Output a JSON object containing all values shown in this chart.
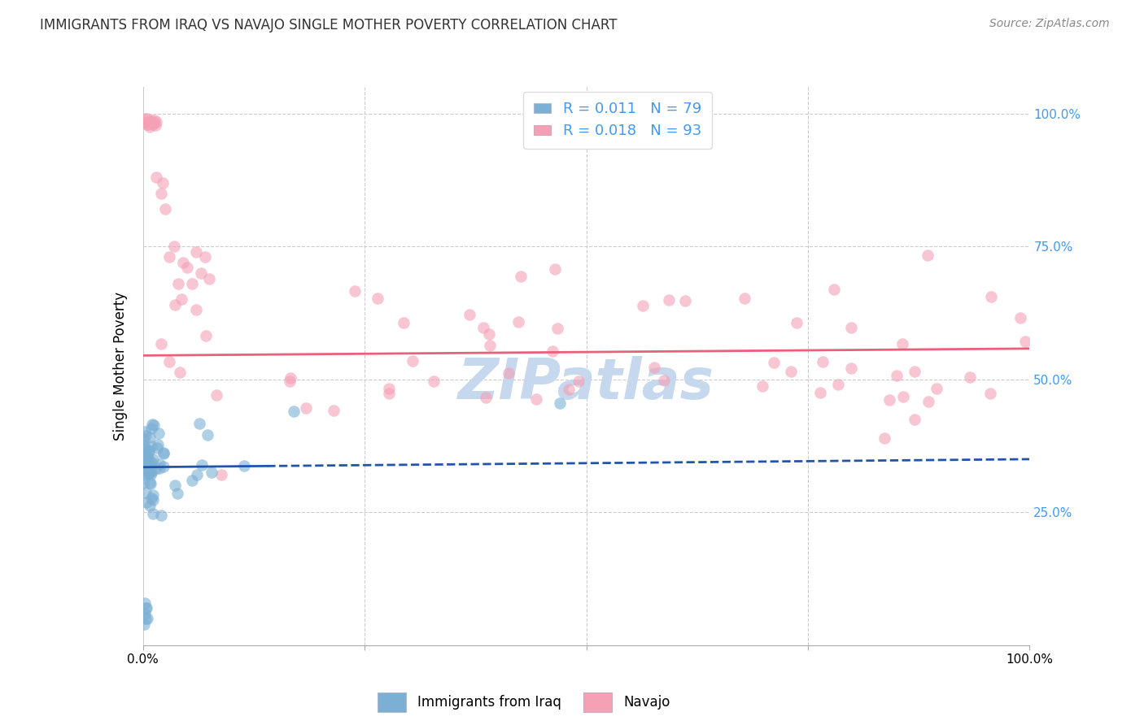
{
  "title": "IMMIGRANTS FROM IRAQ VS NAVAJO SINGLE MOTHER POVERTY CORRELATION CHART",
  "source": "Source: ZipAtlas.com",
  "ylabel": "Single Mother Poverty",
  "blue_label": "Immigrants from Iraq",
  "pink_label": "Navajo",
  "legend_r1": "0.011",
  "legend_n1": "79",
  "legend_r2": "0.018",
  "legend_n2": "93",
  "blue_color": "#7BAFD4",
  "pink_color": "#F4A0B5",
  "blue_line_color": "#2255AA",
  "pink_line_color": "#E8607A",
  "grid_color": "#cccccc",
  "right_axis_color": "#4499EE",
  "watermark_color": "#C5D8EE",
  "title_fontsize": 12,
  "source_fontsize": 10,
  "axis_fontsize": 11,
  "legend_fontsize": 13,
  "xlim": [
    0.0,
    1.0
  ],
  "ylim": [
    0.0,
    1.05
  ],
  "blue_trend_x": [
    0.0,
    1.0
  ],
  "blue_trend_y": [
    0.335,
    0.35
  ],
  "pink_trend_x": [
    0.0,
    1.0
  ],
  "pink_trend_y": [
    0.545,
    0.558
  ]
}
